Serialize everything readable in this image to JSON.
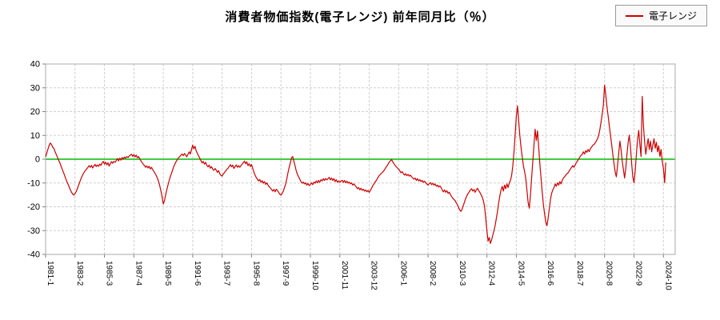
{
  "chart_data": {
    "type": "line",
    "title": "消費者物価指数(電子レンジ) 前年同月比（％）",
    "xlabel": "",
    "ylabel": "",
    "ylim": [
      -40,
      40
    ],
    "ytick_step": 10,
    "y_tick_labels": [
      "40",
      "30",
      "20",
      "10",
      "0",
      "-10",
      "-20",
      "-30",
      "-40"
    ],
    "x_tick_labels": [
      "1981-1",
      "1983-2",
      "1985-3",
      "1987-4",
      "1989-5",
      "1991-6",
      "1993-7",
      "1995-8",
      "1997-9",
      "1999-10",
      "2001-11",
      "2003-12",
      "2006-1",
      "2008-2",
      "2010-3",
      "2012-4",
      "2014-5",
      "2016-6",
      "2018-7",
      "2020-8",
      "2022-9",
      "2024-10"
    ],
    "x_tick_interval_months": 25,
    "grid": "dashed",
    "grid_color": "#cfcfcf",
    "border_color": "#a8a8a8",
    "zero_line_color": "#00bb00",
    "legend_position": "top-right",
    "series": [
      {
        "name": "電子レンジ",
        "color": "#cc0000",
        "start": "1981-1",
        "end": "2024-12",
        "frequency": "monthly",
        "values": [
          1.0,
          2.6,
          4.2,
          5.8,
          6.8,
          6.2,
          5.1,
          4.6,
          3.2,
          2.1,
          0.9,
          -0.4,
          -1.4,
          -2.7,
          -4.1,
          -5.3,
          -6.6,
          -8.0,
          -9.3,
          -10.4,
          -11.6,
          -12.8,
          -13.9,
          -14.6,
          -15.1,
          -14.4,
          -13.6,
          -12.4,
          -11.0,
          -9.6,
          -8.3,
          -7.1,
          -6.1,
          -5.3,
          -4.6,
          -4.0,
          -3.4,
          -2.7,
          -3.4,
          -2.6,
          -3.7,
          -2.9,
          -2.2,
          -3.1,
          -2.4,
          -3.0,
          -2.1,
          -2.6,
          -1.6,
          -0.9,
          -2.1,
          -1.2,
          -2.4,
          -1.5,
          -2.9,
          -1.9,
          -1.0,
          -1.7,
          -0.9,
          -1.3,
          -0.6,
          0.3,
          -0.7,
          0.4,
          -0.4,
          0.7,
          0.1,
          0.9,
          0.4,
          1.1,
          0.7,
          1.3,
          1.7,
          2.1,
          1.2,
          1.9,
          1.0,
          1.7,
          0.6,
          1.1,
          0.1,
          -0.7,
          -1.4,
          -2.1,
          -2.7,
          -3.4,
          -2.8,
          -3.7,
          -3.0,
          -4.1,
          -3.4,
          -4.4,
          -5.1,
          -5.9,
          -6.9,
          -7.9,
          -9.4,
          -11.2,
          -13.4,
          -15.8,
          -18.8,
          -17.4,
          -15.1,
          -12.9,
          -10.8,
          -8.9,
          -7.3,
          -5.9,
          -4.4,
          -3.0,
          -1.9,
          -0.9,
          -0.1,
          0.6,
          1.1,
          1.7,
          2.2,
          1.5,
          2.4,
          1.7,
          1.0,
          2.1,
          3.1,
          2.2,
          4.1,
          5.9,
          4.4,
          5.4,
          3.4,
          2.4,
          1.4,
          0.4,
          -0.6,
          -1.6,
          -0.9,
          -2.1,
          -1.3,
          -2.6,
          -3.2,
          -2.5,
          -3.8,
          -3.1,
          -4.2,
          -4.7,
          -3.9,
          -4.6,
          -5.5,
          -4.8,
          -6.1,
          -6.8,
          -7.1,
          -6.2,
          -5.6,
          -4.9,
          -4.3,
          -3.8,
          -3.1,
          -2.3,
          -3.2,
          -2.5,
          -3.9,
          -3.1,
          -2.4,
          -3.4,
          -2.7,
          -3.4,
          -2.7,
          -2.1,
          -1.5,
          -0.8,
          -1.9,
          -1.1,
          -2.7,
          -1.9,
          -3.1,
          -2.2,
          -3.9,
          -5.4,
          -6.7,
          -7.7,
          -8.4,
          -9.1,
          -8.5,
          -9.7,
          -9.0,
          -10.1,
          -9.4,
          -10.6,
          -9.9,
          -10.9,
          -11.6,
          -12.1,
          -12.7,
          -13.4,
          -12.7,
          -13.7,
          -12.6,
          -13.1,
          -13.9,
          -14.7,
          -15.1,
          -14.4,
          -13.4,
          -11.9,
          -10.4,
          -8.1,
          -5.6,
          -3.4,
          -1.4,
          0.6,
          1.1,
          -0.9,
          -2.9,
          -4.9,
          -6.4,
          -7.4,
          -8.4,
          -9.4,
          -10.1,
          -9.6,
          -10.4,
          -9.9,
          -10.9,
          -10.2,
          -11.1,
          -10.6,
          -9.9,
          -10.7,
          -9.6,
          -10.1,
          -9.1,
          -9.9,
          -8.9,
          -9.7,
          -8.6,
          -9.1,
          -8.2,
          -8.9,
          -8.1,
          -8.7,
          -8.2,
          -7.6,
          -8.7,
          -7.9,
          -8.9,
          -8.2,
          -9.4,
          -8.6,
          -9.7,
          -9.1,
          -9.7,
          -9.2,
          -8.9,
          -9.7,
          -8.9,
          -9.9,
          -9.2,
          -10.1,
          -9.6,
          -10.4,
          -9.9,
          -10.9,
          -10.4,
          -11.1,
          -11.7,
          -12.4,
          -11.9,
          -12.9,
          -12.2,
          -13.1,
          -12.6,
          -13.4,
          -12.9,
          -13.7,
          -13.1,
          -13.9,
          -13.1,
          -12.2,
          -11.2,
          -10.4,
          -9.6,
          -8.9,
          -8.1,
          -7.2,
          -6.6,
          -6.1,
          -5.6,
          -5.1,
          -4.4,
          -3.6,
          -2.9,
          -2.1,
          -1.2,
          -0.7,
          -0.2,
          -1.1,
          -1.9,
          -2.6,
          -3.2,
          -3.7,
          -4.2,
          -4.9,
          -5.7,
          -5.2,
          -6.1,
          -6.7,
          -6.1,
          -6.9,
          -6.4,
          -7.1,
          -6.7,
          -7.4,
          -7.9,
          -8.4,
          -7.9,
          -8.9,
          -8.2,
          -9.1,
          -8.6,
          -9.4,
          -8.9,
          -9.7,
          -9.2,
          -9.9,
          -10.4,
          -10.9,
          -10.2,
          -9.8,
          -10.7,
          -10.1,
          -10.9,
          -10.4,
          -11.4,
          -10.9,
          -11.7,
          -11.2,
          -11.9,
          -12.9,
          -13.7,
          -12.9,
          -13.9,
          -13.2,
          -14.4,
          -13.8,
          -14.9,
          -15.7,
          -16.4,
          -16.9,
          -17.4,
          -18.4,
          -19.2,
          -20.4,
          -21.4,
          -21.9,
          -20.9,
          -19.4,
          -17.9,
          -16.4,
          -15.4,
          -14.4,
          -13.7,
          -12.9,
          -12.4,
          -13.4,
          -12.7,
          -13.9,
          -12.9,
          -12.2,
          -13.2,
          -13.9,
          -14.9,
          -15.9,
          -17.4,
          -19.9,
          -24.9,
          -29.9,
          -34.4,
          -32.9,
          -35.4,
          -33.9,
          -31.9,
          -29.9,
          -27.9,
          -24.9,
          -21.9,
          -18.4,
          -15.4,
          -12.9,
          -11.4,
          -13.4,
          -10.9,
          -12.4,
          -10.4,
          -11.9,
          -9.9,
          -8.9,
          -6.9,
          -2.9,
          3.1,
          10.1,
          18.1,
          22.4,
          15.9,
          9.9,
          4.9,
          0.9,
          -2.6,
          -5.1,
          -8.1,
          -13.1,
          -18.1,
          -20.6,
          -14.9,
          -7.9,
          -0.9,
          6.1,
          12.6,
          7.9,
          11.9,
          4.9,
          -1.9,
          -7.9,
          -13.9,
          -18.9,
          -22.9,
          -26.4,
          -27.9,
          -24.9,
          -20.9,
          -16.9,
          -14.4,
          -12.9,
          -11.9,
          -10.4,
          -11.4,
          -9.9,
          -10.9,
          -9.4,
          -10.4,
          -8.9,
          -7.9,
          -7.4,
          -6.7,
          -6.1,
          -5.7,
          -4.9,
          -4.1,
          -3.4,
          -2.7,
          -3.4,
          -2.4,
          -1.4,
          -0.7,
          0.1,
          0.9,
          1.6,
          2.1,
          3.1,
          2.2,
          3.6,
          2.9,
          4.1,
          3.2,
          4.6,
          5.1,
          5.9,
          6.2,
          6.9,
          7.6,
          8.6,
          10.1,
          12.6,
          15.6,
          19.1,
          23.1,
          31.1,
          27.1,
          22.1,
          18.1,
          14.1,
          10.1,
          6.1,
          2.1,
          -1.9,
          -5.4,
          -7.4,
          -2.9,
          2.6,
          7.6,
          4.1,
          -0.9,
          -4.4,
          -7.9,
          -3.9,
          2.1,
          7.1,
          10.1,
          5.1,
          -1.9,
          -7.4,
          -9.9,
          -4.9,
          2.1,
          8.1,
          12.1,
          6.1,
          1.1,
          26.4,
          14.1,
          7.1,
          2.1,
          5.6,
          8.6,
          4.1,
          7.6,
          3.1,
          6.1,
          8.6,
          4.6,
          7.1,
          3.1,
          5.6,
          1.1,
          4.1,
          -0.9,
          -3.9,
          -9.9,
          -1.4
        ]
      }
    ]
  }
}
